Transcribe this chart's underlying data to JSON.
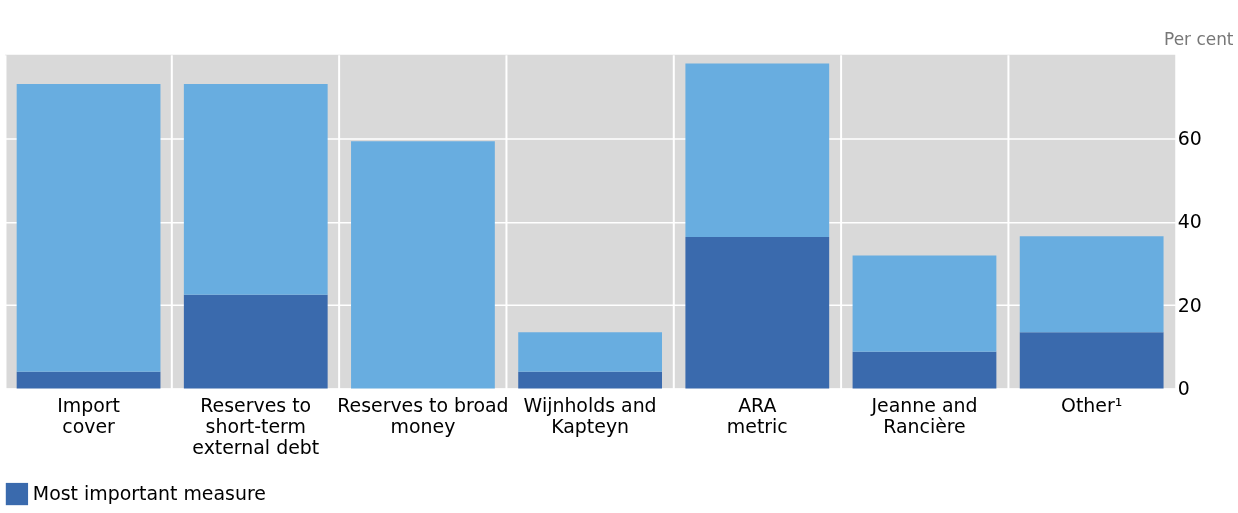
{
  "chart_data": {
    "type": "bar",
    "stacked": true,
    "ylabel": "Per cent",
    "categories": [
      "Import cover",
      "Reserves to short-term external debt",
      "Reserves to broad money",
      "Wijnholds and Kapteyn",
      "ARA metric",
      "Jeanne and Rancière",
      "Other¹"
    ],
    "series": [
      {
        "name": "Most important measure",
        "color": "#3a6aad",
        "values": [
          4,
          22.5,
          0,
          4,
          36.3,
          8.8,
          13.5
        ]
      },
      {
        "color": "#68ade0",
        "values": [
          69,
          50.5,
          59.3,
          9.5,
          41.6,
          23.1,
          23
        ]
      }
    ],
    "ylim": [
      0,
      80
    ],
    "yticks": [
      0,
      20,
      40,
      60
    ],
    "grid": true,
    "legend": "bottom left"
  }
}
